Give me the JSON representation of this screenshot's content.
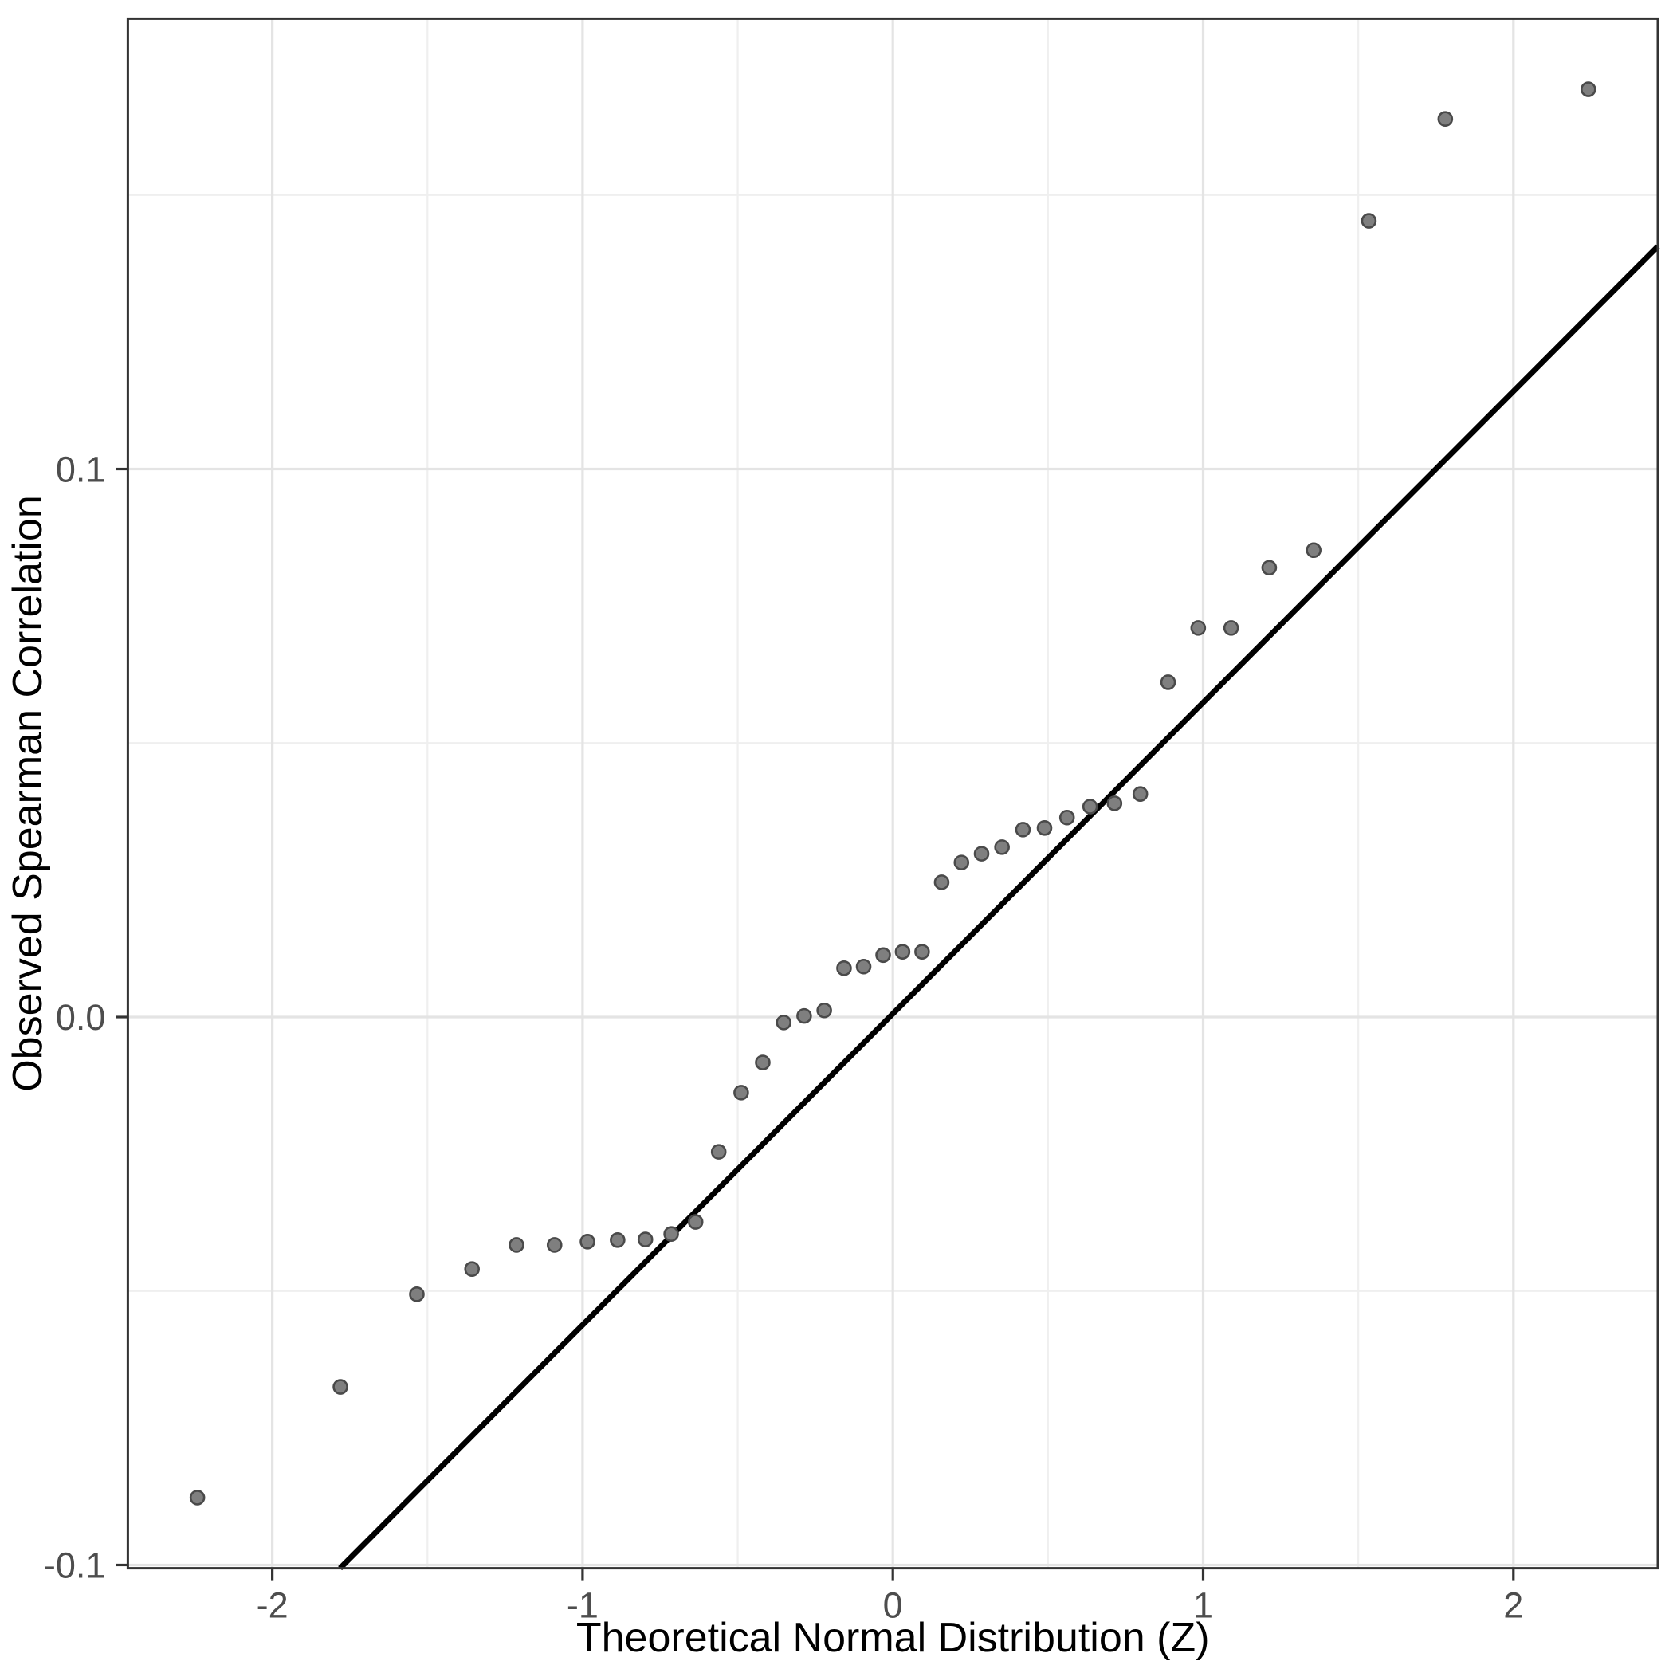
{
  "chart_data": {
    "type": "scatter",
    "title": "",
    "xlabel": "Theoretical Normal Distribution (Z)",
    "ylabel": "Observed Spearman Correlation",
    "xlim": [
      -2.4655,
      2.4655
    ],
    "ylim": [
      -0.1006,
      0.1822
    ],
    "grid": "on",
    "legend": "none",
    "x_ticks": [
      {
        "value": -2,
        "label": "-2"
      },
      {
        "value": -1,
        "label": "-1"
      },
      {
        "value": 0,
        "label": "0"
      },
      {
        "value": 1,
        "label": "1"
      },
      {
        "value": 2,
        "label": "2"
      }
    ],
    "y_ticks": [
      {
        "value": 0.1,
        "label": "0.1"
      },
      {
        "value": 0.0,
        "label": "0.0"
      },
      {
        "value": -0.1,
        "label": "-0.1"
      }
    ],
    "x_minor_gridlines": [
      -1.5,
      -0.5,
      0.5,
      1.5
    ],
    "y_minor_gridlines": [
      -0.05,
      0.05,
      0.15
    ],
    "reference_line": {
      "slope": 0.0568,
      "intercept": 0.0006,
      "color": "#000000"
    },
    "points": [
      [
        -2.2414,
        -0.0877
      ],
      [
        -1.7805,
        -0.0675
      ],
      [
        -1.5341,
        -0.0506
      ],
      [
        -1.3563,
        -0.046
      ],
      [
        -1.213,
        -0.0416
      ],
      [
        -1.0903,
        -0.0416
      ],
      [
        -0.9842,
        -0.041
      ],
      [
        -0.8871,
        -0.0407
      ],
      [
        -0.7976,
        -0.0406
      ],
      [
        -0.7144,
        -0.0396
      ],
      [
        -0.6357,
        -0.0374
      ],
      [
        -0.5613,
        -0.0246
      ],
      [
        -0.4888,
        -0.0138
      ],
      [
        -0.4193,
        -0.0083
      ],
      [
        -0.3518,
        -0.001
      ],
      [
        -0.2859,
        0.0002
      ],
      [
        -0.2211,
        0.0012
      ],
      [
        -0.1573,
        0.0089
      ],
      [
        -0.0942,
        0.0092
      ],
      [
        -0.0313,
        0.0113
      ],
      [
        0.0313,
        0.0119
      ],
      [
        0.0942,
        0.0119
      ],
      [
        0.1573,
        0.0246
      ],
      [
        0.2211,
        0.0282
      ],
      [
        0.2859,
        0.0298
      ],
      [
        0.3518,
        0.031
      ],
      [
        0.4193,
        0.0342
      ],
      [
        0.4888,
        0.0345
      ],
      [
        0.5613,
        0.0364
      ],
      [
        0.6357,
        0.0384
      ],
      [
        0.7144,
        0.039
      ],
      [
        0.7976,
        0.0407
      ],
      [
        0.8871,
        0.0611
      ],
      [
        0.9842,
        0.071
      ],
      [
        1.0903,
        0.071
      ],
      [
        1.213,
        0.082
      ],
      [
        1.3563,
        0.0852
      ],
      [
        1.5341,
        0.1453
      ],
      [
        1.7805,
        0.1639
      ],
      [
        2.2414,
        0.1693
      ]
    ],
    "colors": {
      "point_fill": "#7f7f7f",
      "point_stroke": "#4a4a4a",
      "major_grid": "#e4e4e4",
      "minor_grid": "#efefef",
      "panel_border": "#333333",
      "tick_mark": "#333333",
      "tick_text": "#4d4d4d",
      "axis_title_text": "#000000",
      "background": "#ffffff"
    }
  }
}
